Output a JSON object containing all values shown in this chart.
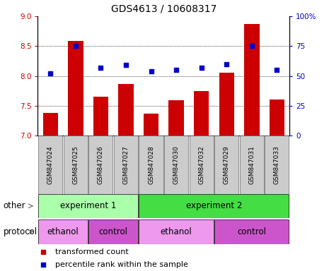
{
  "title": "GDS4613 / 10608317",
  "samples": [
    "GSM847024",
    "GSM847025",
    "GSM847026",
    "GSM847027",
    "GSM847028",
    "GSM847030",
    "GSM847032",
    "GSM847029",
    "GSM847031",
    "GSM847033"
  ],
  "bar_values": [
    7.38,
    8.59,
    7.65,
    7.87,
    7.37,
    7.59,
    7.74,
    8.05,
    8.87,
    7.6
  ],
  "dot_values_pct": [
    52,
    75,
    57,
    59,
    54,
    55,
    57,
    60,
    75,
    55
  ],
  "ylim": [
    7.0,
    9.0
  ],
  "yticks": [
    7.0,
    7.5,
    8.0,
    8.5,
    9.0
  ],
  "right_ylim": [
    0,
    100
  ],
  "right_yticks": [
    0,
    25,
    50,
    75,
    100
  ],
  "bar_color": "#cc0000",
  "dot_color": "#0000cc",
  "bar_bottom": 7.0,
  "experiment1_color": "#aaffaa",
  "experiment2_color": "#44dd44",
  "ethanol_color": "#ee99ee",
  "control_color": "#cc55cc",
  "other_label": "other",
  "protocol_label": "protocol",
  "legend_bar_label": "transformed count",
  "legend_dot_label": "percentile rank within the sample",
  "title_fontsize": 10,
  "tick_fontsize": 7.5,
  "label_fontsize": 8.5,
  "sample_fontsize": 6.5
}
